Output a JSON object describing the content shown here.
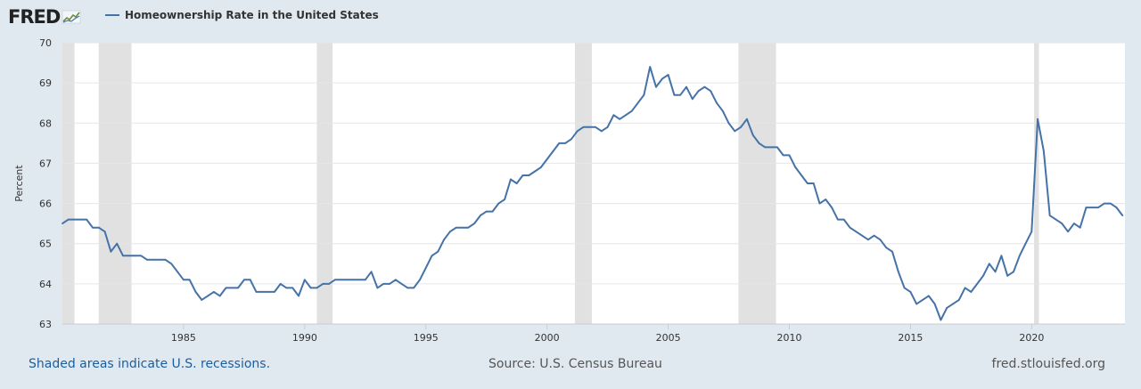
{
  "logo": {
    "text": "FRED",
    "icon": "chart-line-icon"
  },
  "footer": {
    "recession_note": "Shaded areas indicate U.S. recessions.",
    "source": "Source: U.S. Census Bureau",
    "site": "fred.stlouisfed.org"
  },
  "colors": {
    "background": "#e1e9f0",
    "line": "#4572a7",
    "recession": "#e1e1e1",
    "plot": "#ffffff"
  },
  "chart_data": {
    "type": "line",
    "title": "",
    "xlabel": "",
    "ylabel": "Percent",
    "xlim": [
      1980.0,
      2023.85
    ],
    "ylim": [
      63,
      70
    ],
    "grid": true,
    "legend_position": "top-left",
    "y_ticks": [
      63,
      64,
      65,
      66,
      67,
      68,
      69,
      70
    ],
    "x_ticks": [
      1985,
      1990,
      1995,
      2000,
      2005,
      2010,
      2015,
      2020
    ],
    "recessions": [
      [
        1980.0,
        1980.5
      ],
      [
        1981.5,
        1982.85
      ],
      [
        1990.5,
        1991.15
      ],
      [
        2001.15,
        2001.85
      ],
      [
        2007.9,
        2009.45
      ],
      [
        2020.1,
        2020.3
      ]
    ],
    "series": [
      {
        "name": "Homeownership Rate in the United States",
        "points": [
          [
            1980.0,
            65.5
          ],
          [
            1980.25,
            65.6
          ],
          [
            1980.5,
            65.6
          ],
          [
            1980.75,
            65.6
          ],
          [
            1981.0,
            65.6
          ],
          [
            1981.25,
            65.4
          ],
          [
            1981.5,
            65.4
          ],
          [
            1981.75,
            65.3
          ],
          [
            1982.0,
            64.8
          ],
          [
            1982.25,
            65.0
          ],
          [
            1982.5,
            64.7
          ],
          [
            1982.75,
            64.7
          ],
          [
            1983.0,
            64.7
          ],
          [
            1983.25,
            64.7
          ],
          [
            1983.5,
            64.6
          ],
          [
            1983.75,
            64.6
          ],
          [
            1984.0,
            64.6
          ],
          [
            1984.25,
            64.6
          ],
          [
            1984.5,
            64.5
          ],
          [
            1984.75,
            64.3
          ],
          [
            1985.0,
            64.1
          ],
          [
            1985.25,
            64.1
          ],
          [
            1985.5,
            63.8
          ],
          [
            1985.75,
            63.6
          ],
          [
            1986.0,
            63.7
          ],
          [
            1986.25,
            63.8
          ],
          [
            1986.5,
            63.7
          ],
          [
            1986.75,
            63.9
          ],
          [
            1987.0,
            63.9
          ],
          [
            1987.25,
            63.9
          ],
          [
            1987.5,
            64.1
          ],
          [
            1987.75,
            64.1
          ],
          [
            1988.0,
            63.8
          ],
          [
            1988.25,
            63.8
          ],
          [
            1988.5,
            63.8
          ],
          [
            1988.75,
            63.8
          ],
          [
            1989.0,
            64.0
          ],
          [
            1989.25,
            63.9
          ],
          [
            1989.5,
            63.9
          ],
          [
            1989.75,
            63.7
          ],
          [
            1990.0,
            64.1
          ],
          [
            1990.25,
            63.9
          ],
          [
            1990.5,
            63.9
          ],
          [
            1990.75,
            64.0
          ],
          [
            1991.0,
            64.0
          ],
          [
            1991.25,
            64.1
          ],
          [
            1991.5,
            64.1
          ],
          [
            1991.75,
            64.1
          ],
          [
            1992.0,
            64.1
          ],
          [
            1992.25,
            64.1
          ],
          [
            1992.5,
            64.1
          ],
          [
            1992.75,
            64.3
          ],
          [
            1993.0,
            63.9
          ],
          [
            1993.25,
            64.0
          ],
          [
            1993.5,
            64.0
          ],
          [
            1993.75,
            64.1
          ],
          [
            1994.0,
            64.0
          ],
          [
            1994.25,
            63.9
          ],
          [
            1994.5,
            63.9
          ],
          [
            1994.75,
            64.1
          ],
          [
            1995.0,
            64.4
          ],
          [
            1995.25,
            64.7
          ],
          [
            1995.5,
            64.8
          ],
          [
            1995.75,
            65.1
          ],
          [
            1996.0,
            65.3
          ],
          [
            1996.25,
            65.4
          ],
          [
            1996.5,
            65.4
          ],
          [
            1996.75,
            65.4
          ],
          [
            1997.0,
            65.5
          ],
          [
            1997.25,
            65.7
          ],
          [
            1997.5,
            65.8
          ],
          [
            1997.75,
            65.8
          ],
          [
            1998.0,
            66.0
          ],
          [
            1998.25,
            66.1
          ],
          [
            1998.5,
            66.6
          ],
          [
            1998.75,
            66.5
          ],
          [
            1999.0,
            66.7
          ],
          [
            1999.25,
            66.7
          ],
          [
            1999.5,
            66.8
          ],
          [
            1999.75,
            66.9
          ],
          [
            2000.0,
            67.1
          ],
          [
            2000.25,
            67.3
          ],
          [
            2000.5,
            67.5
          ],
          [
            2000.75,
            67.5
          ],
          [
            2001.0,
            67.6
          ],
          [
            2001.25,
            67.8
          ],
          [
            2001.5,
            67.9
          ],
          [
            2001.75,
            67.9
          ],
          [
            2002.0,
            67.9
          ],
          [
            2002.25,
            67.8
          ],
          [
            2002.5,
            67.9
          ],
          [
            2002.75,
            68.2
          ],
          [
            2003.0,
            68.1
          ],
          [
            2003.25,
            68.2
          ],
          [
            2003.5,
            68.3
          ],
          [
            2003.75,
            68.5
          ],
          [
            2004.0,
            68.7
          ],
          [
            2004.25,
            69.4
          ],
          [
            2004.5,
            68.9
          ],
          [
            2004.75,
            69.1
          ],
          [
            2005.0,
            69.2
          ],
          [
            2005.25,
            68.7
          ],
          [
            2005.5,
            68.7
          ],
          [
            2005.75,
            68.9
          ],
          [
            2006.0,
            68.6
          ],
          [
            2006.25,
            68.8
          ],
          [
            2006.5,
            68.9
          ],
          [
            2006.75,
            68.8
          ],
          [
            2007.0,
            68.5
          ],
          [
            2007.25,
            68.3
          ],
          [
            2007.5,
            68.0
          ],
          [
            2007.75,
            67.8
          ],
          [
            2008.0,
            67.9
          ],
          [
            2008.25,
            68.1
          ],
          [
            2008.5,
            67.7
          ],
          [
            2008.75,
            67.5
          ],
          [
            2009.0,
            67.4
          ],
          [
            2009.25,
            67.4
          ],
          [
            2009.5,
            67.4
          ],
          [
            2009.75,
            67.2
          ],
          [
            2010.0,
            67.2
          ],
          [
            2010.25,
            66.9
          ],
          [
            2010.5,
            66.7
          ],
          [
            2010.75,
            66.5
          ],
          [
            2011.0,
            66.5
          ],
          [
            2011.25,
            66.0
          ],
          [
            2011.5,
            66.1
          ],
          [
            2011.75,
            65.9
          ],
          [
            2012.0,
            65.6
          ],
          [
            2012.25,
            65.6
          ],
          [
            2012.5,
            65.4
          ],
          [
            2012.75,
            65.3
          ],
          [
            2013.0,
            65.2
          ],
          [
            2013.25,
            65.1
          ],
          [
            2013.5,
            65.2
          ],
          [
            2013.75,
            65.1
          ],
          [
            2014.0,
            64.9
          ],
          [
            2014.25,
            64.8
          ],
          [
            2014.5,
            64.3
          ],
          [
            2014.75,
            63.9
          ],
          [
            2015.0,
            63.8
          ],
          [
            2015.25,
            63.5
          ],
          [
            2015.5,
            63.6
          ],
          [
            2015.75,
            63.7
          ],
          [
            2016.0,
            63.5
          ],
          [
            2016.25,
            63.1
          ],
          [
            2016.5,
            63.4
          ],
          [
            2016.75,
            63.5
          ],
          [
            2017.0,
            63.6
          ],
          [
            2017.25,
            63.9
          ],
          [
            2017.5,
            63.8
          ],
          [
            2017.75,
            64.0
          ],
          [
            2018.0,
            64.2
          ],
          [
            2018.25,
            64.5
          ],
          [
            2018.5,
            64.3
          ],
          [
            2018.75,
            64.7
          ],
          [
            2019.0,
            64.2
          ],
          [
            2019.25,
            64.3
          ],
          [
            2019.5,
            64.7
          ],
          [
            2019.75,
            65.0
          ],
          [
            2020.0,
            65.3
          ],
          [
            2020.25,
            68.1
          ],
          [
            2020.5,
            67.3
          ],
          [
            2020.75,
            65.7
          ],
          [
            2021.0,
            65.6
          ],
          [
            2021.25,
            65.5
          ],
          [
            2021.5,
            65.3
          ],
          [
            2021.75,
            65.5
          ],
          [
            2022.0,
            65.4
          ],
          [
            2022.25,
            65.9
          ],
          [
            2022.5,
            65.9
          ],
          [
            2022.75,
            65.9
          ],
          [
            2023.0,
            66.0
          ],
          [
            2023.25,
            66.0
          ],
          [
            2023.5,
            65.9
          ],
          [
            2023.75,
            65.7
          ]
        ]
      }
    ]
  }
}
